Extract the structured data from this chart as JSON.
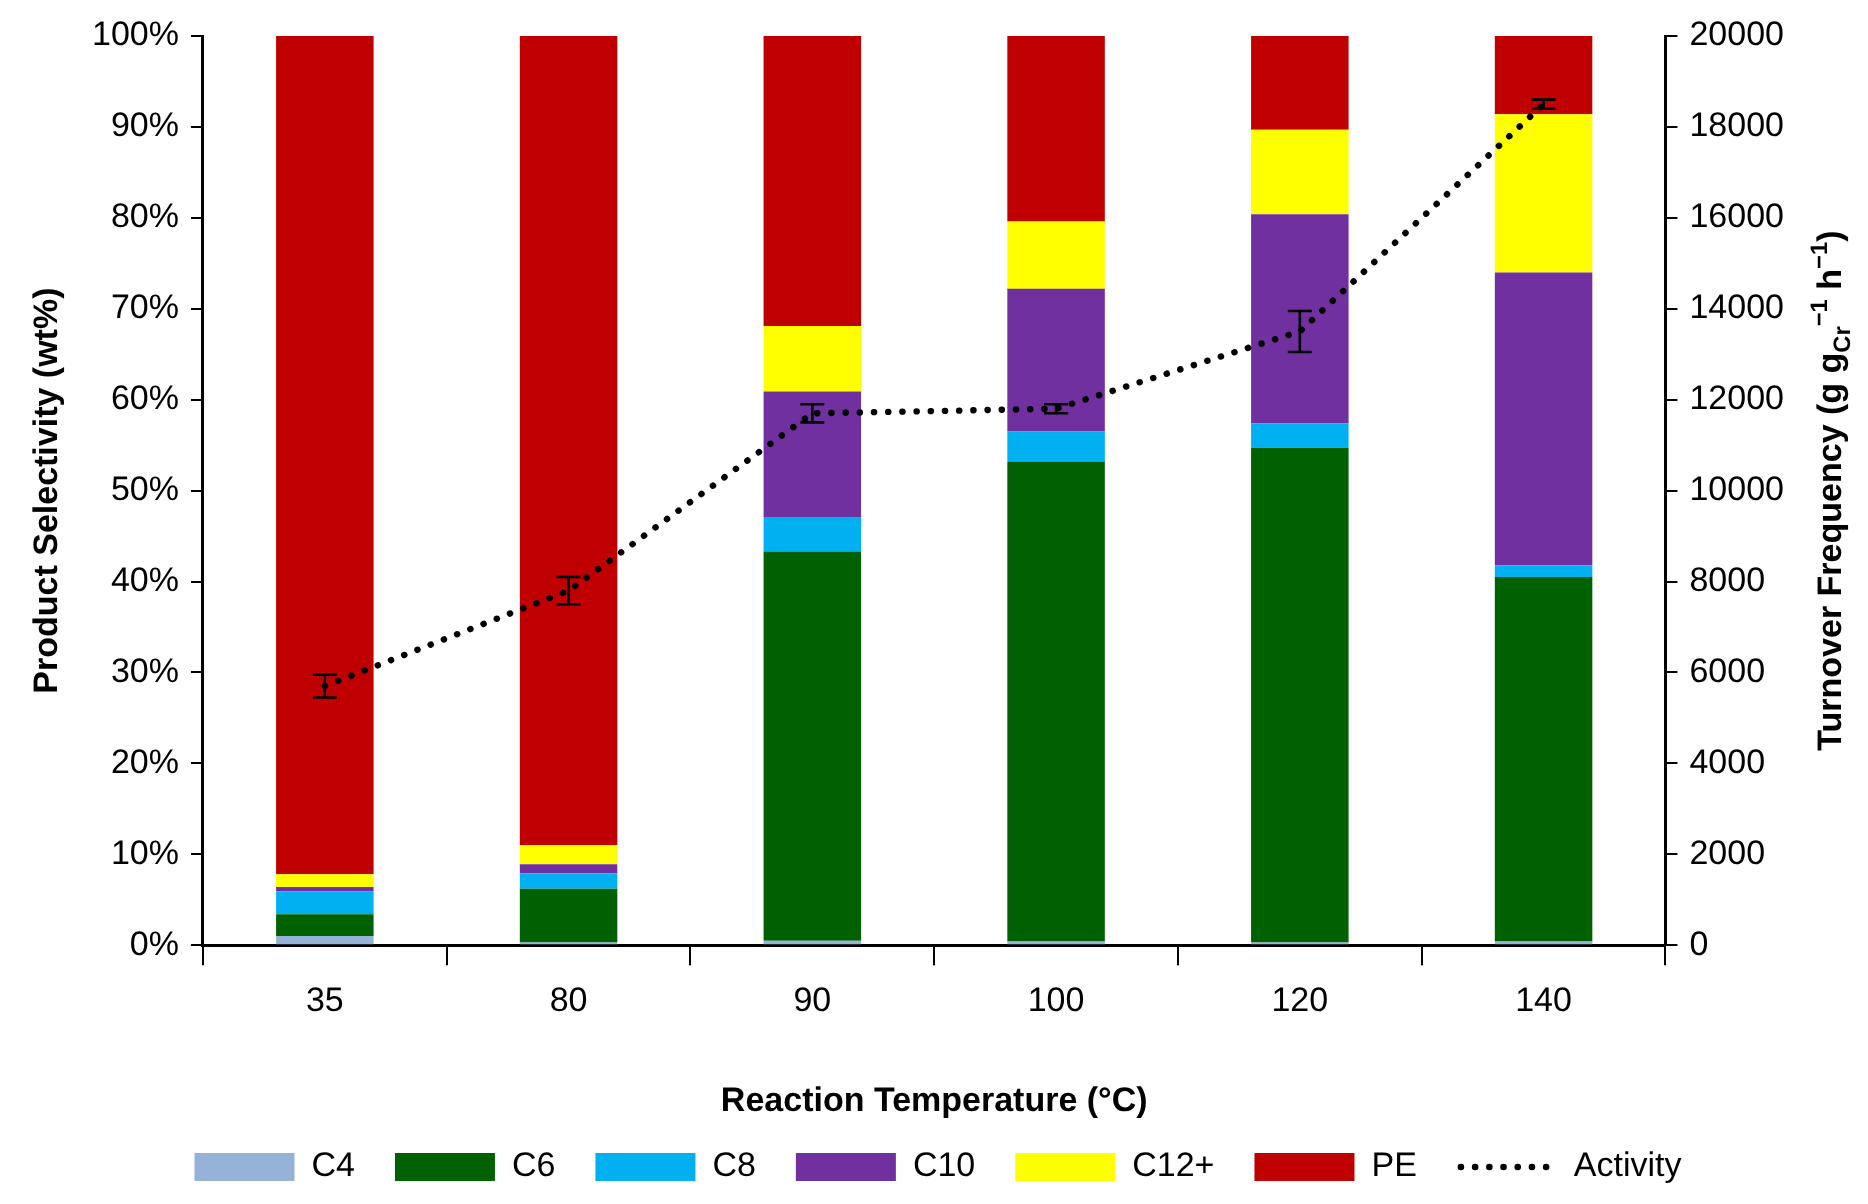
{
  "chart_data": {
    "type": "bar",
    "stacked": true,
    "xlabel": "Reaction Temperature (°C)",
    "ylabel": "Product Selectivity (wt%)",
    "y2label": "Turnover Frequency (g g$_{Cr}$$^{−1}$ h$^{−1}$)",
    "categories": [
      "35",
      "80",
      "90",
      "100",
      "120",
      "140"
    ],
    "series": [
      {
        "name": "C4",
        "color": "#95b3d7",
        "values": [
          1.0,
          0.3,
          0.5,
          0.4,
          0.3,
          0.4
        ]
      },
      {
        "name": "C6",
        "color": "#006100",
        "values": [
          2.4,
          5.9,
          42.8,
          52.8,
          54.4,
          40.1
        ]
      },
      {
        "name": "C8",
        "color": "#00b0f0",
        "values": [
          2.5,
          1.7,
          3.8,
          3.3,
          2.7,
          1.3
        ]
      },
      {
        "name": "C10",
        "color": "#7030a0",
        "values": [
          0.5,
          1.0,
          13.8,
          15.7,
          23.0,
          32.2
        ]
      },
      {
        "name": "C12+",
        "color": "#ffff00",
        "values": [
          1.4,
          2.1,
          7.2,
          7.4,
          9.3,
          17.4
        ]
      },
      {
        "name": "PE",
        "color": "#c00000",
        "values": [
          92.2,
          89.0,
          31.9,
          20.4,
          10.3,
          8.6
        ]
      },
      {
        "name": "Activity",
        "type": "line",
        "axis": "y2",
        "color": "#000000",
        "line_style": "dotted",
        "values": [
          5700,
          7800,
          11700,
          11800,
          13500,
          18500
        ],
        "errors": [
          250,
          300,
          200,
          100,
          450,
          100
        ]
      }
    ],
    "ylim": [
      0,
      100
    ],
    "yticks": [
      {
        "value": 0,
        "label": "0%"
      },
      {
        "value": 10,
        "label": "10%"
      },
      {
        "value": 20,
        "label": "20%"
      },
      {
        "value": 30,
        "label": "30%"
      },
      {
        "value": 40,
        "label": "40%"
      },
      {
        "value": 50,
        "label": "50%"
      },
      {
        "value": 60,
        "label": "60%"
      },
      {
        "value": 70,
        "label": "70%"
      },
      {
        "value": 80,
        "label": "80%"
      },
      {
        "value": 90,
        "label": "90%"
      },
      {
        "value": 100,
        "label": "100%"
      }
    ],
    "y2lim": [
      0,
      20000
    ],
    "y2ticks": [
      0,
      2000,
      4000,
      6000,
      8000,
      10000,
      12000,
      14000,
      16000,
      18000,
      20000
    ],
    "grid": false,
    "legend": "bottom"
  }
}
